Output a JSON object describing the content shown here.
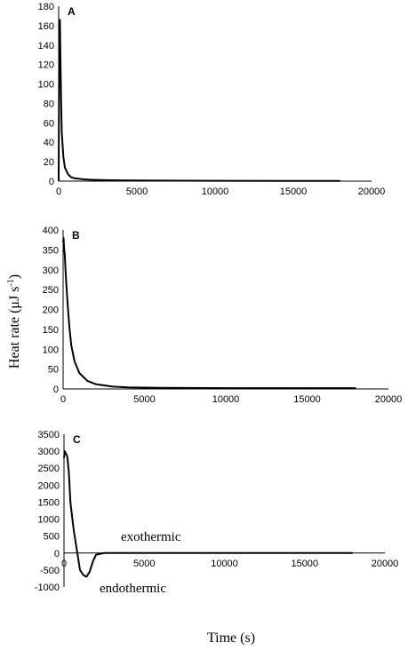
{
  "figure": {
    "ylabel_main": "Heat rate (μJ s",
    "ylabel_sup": "-1",
    "ylabel_close": ")",
    "xlabel": "Time (s)"
  },
  "chart_data": [
    {
      "type": "line",
      "panel": "A",
      "xlim": [
        0,
        20000
      ],
      "ylim": [
        0,
        180
      ],
      "xticks": [
        0,
        5000,
        10000,
        15000,
        20000
      ],
      "yticks": [
        0,
        20,
        40,
        60,
        80,
        100,
        120,
        140,
        160,
        180
      ],
      "annotations": [],
      "series": [
        {
          "x": [
            0,
            40,
            80,
            120,
            160,
            200,
            300,
            400,
            600,
            800,
            1000,
            1500,
            2000,
            3000,
            5000,
            10000,
            15000,
            18000
          ],
          "y": [
            0,
            160,
            166,
            120,
            80,
            50,
            25,
            14,
            7,
            4,
            3,
            2,
            1.5,
            1,
            0.6,
            0.4,
            0.3,
            0.3
          ]
        }
      ]
    },
    {
      "type": "line",
      "panel": "B",
      "xlim": [
        0,
        20000
      ],
      "ylim": [
        0,
        400
      ],
      "xticks": [
        0,
        5000,
        10000,
        15000,
        20000
      ],
      "yticks": [
        0,
        50,
        100,
        150,
        200,
        250,
        300,
        350,
        400
      ],
      "annotations": [],
      "series": [
        {
          "x": [
            0,
            30,
            60,
            100,
            150,
            200,
            300,
            400,
            500,
            700,
            1000,
            1500,
            2000,
            3000,
            4000,
            6000,
            10000,
            18000
          ],
          "y": [
            370,
            380,
            355,
            340,
            300,
            260,
            200,
            150,
            110,
            70,
            40,
            20,
            12,
            6,
            4,
            3,
            2,
            2
          ]
        }
      ]
    },
    {
      "type": "line",
      "panel": "C",
      "xlim": [
        0,
        20000
      ],
      "ylim": [
        -1000,
        3500
      ],
      "xticks": [
        0,
        5000,
        10000,
        15000,
        20000
      ],
      "yticks": [
        -1000,
        -500,
        0,
        500,
        1000,
        1500,
        2000,
        2500,
        3000,
        3500
      ],
      "annotations": [
        "exothermic",
        "endothermic"
      ],
      "series": [
        {
          "x": [
            0,
            50,
            100,
            200,
            300,
            400,
            500,
            600,
            800,
            1000,
            1200,
            1400,
            1600,
            1800,
            2000,
            2500,
            3000,
            5000,
            10000,
            18000
          ],
          "y": [
            2800,
            3000,
            2950,
            2850,
            2400,
            1500,
            1100,
            700,
            100,
            -500,
            -650,
            -700,
            -550,
            -250,
            -50,
            0,
            0,
            0,
            0,
            0
          ]
        }
      ]
    }
  ]
}
